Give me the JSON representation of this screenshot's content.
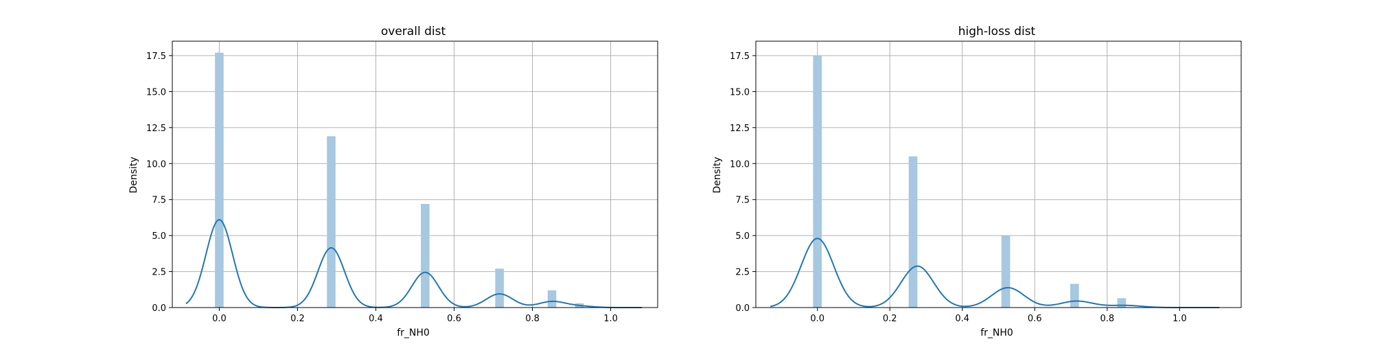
{
  "chart_data": [
    {
      "type": "bar",
      "title": "overall dist",
      "xlabel": "fr_NH0",
      "ylabel": "Density",
      "xlim": [
        -0.12,
        1.12
      ],
      "ylim": [
        0,
        18.5
      ],
      "xticks": [
        0.0,
        0.2,
        0.4,
        0.6,
        0.8,
        1.0
      ],
      "xtick_labels": [
        "0.0",
        "0.2",
        "0.4",
        "0.6",
        "0.8",
        "1.0"
      ],
      "yticks": [
        0.0,
        2.5,
        5.0,
        7.5,
        10.0,
        12.5,
        15.0,
        17.5
      ],
      "ytick_labels": [
        "0.0",
        "2.5",
        "5.0",
        "7.5",
        "10.0",
        "12.5",
        "15.0",
        "17.5"
      ],
      "grid": true,
      "histogram": {
        "bin_width": 0.022,
        "color": "#a6c8e0",
        "bins": [
          {
            "x": 0.0,
            "density": 17.7
          },
          {
            "x": 0.286,
            "density": 11.9
          },
          {
            "x": 0.526,
            "density": 7.2
          },
          {
            "x": 0.716,
            "density": 2.7
          },
          {
            "x": 0.85,
            "density": 1.2
          },
          {
            "x": 0.92,
            "density": 0.3
          }
        ]
      },
      "kde": {
        "color": "#1f77b4",
        "x_range": [
          -0.085,
          1.08
        ],
        "components": [
          {
            "mu": 0.0,
            "peak": 6.1,
            "sigma": 0.034
          },
          {
            "mu": 0.286,
            "peak": 4.15,
            "sigma": 0.034
          },
          {
            "mu": 0.526,
            "peak": 2.45,
            "sigma": 0.034
          },
          {
            "mu": 0.716,
            "peak": 0.95,
            "sigma": 0.034
          },
          {
            "mu": 0.85,
            "peak": 0.42,
            "sigma": 0.034
          },
          {
            "mu": 0.92,
            "peak": 0.1,
            "sigma": 0.034
          }
        ]
      }
    },
    {
      "type": "bar",
      "title": "high-loss dist",
      "xlabel": "fr_NH0",
      "ylabel": "Density",
      "xlim": [
        -0.17,
        1.17
      ],
      "ylim": [
        0,
        18.5
      ],
      "xticks": [
        0.0,
        0.2,
        0.4,
        0.6,
        0.8,
        1.0
      ],
      "xtick_labels": [
        "0.0",
        "0.2",
        "0.4",
        "0.6",
        "0.8",
        "1.0"
      ],
      "yticks": [
        0.0,
        2.5,
        5.0,
        7.5,
        10.0,
        12.5,
        15.0,
        17.5
      ],
      "ytick_labels": [
        "0.0",
        "2.5",
        "5.0",
        "7.5",
        "10.0",
        "12.5",
        "15.0",
        "17.5"
      ],
      "grid": true,
      "histogram": {
        "bin_width": 0.024,
        "color": "#a6c8e0",
        "bins": [
          {
            "x": 0.0,
            "density": 17.5
          },
          {
            "x": 0.264,
            "density": 10.5
          },
          {
            "x": 0.52,
            "density": 5.0
          },
          {
            "x": 0.71,
            "density": 1.65
          },
          {
            "x": 0.84,
            "density": 0.65
          }
        ]
      },
      "kde": {
        "color": "#1f77b4",
        "x_range": [
          -0.13,
          1.11
        ],
        "components": [
          {
            "mu": 0.0,
            "peak": 4.8,
            "sigma": 0.045
          },
          {
            "mu": 0.276,
            "peak": 2.88,
            "sigma": 0.045
          },
          {
            "mu": 0.526,
            "peak": 1.38,
            "sigma": 0.045
          },
          {
            "mu": 0.716,
            "peak": 0.45,
            "sigma": 0.045
          },
          {
            "mu": 0.85,
            "peak": 0.15,
            "sigma": 0.045
          }
        ]
      }
    }
  ]
}
